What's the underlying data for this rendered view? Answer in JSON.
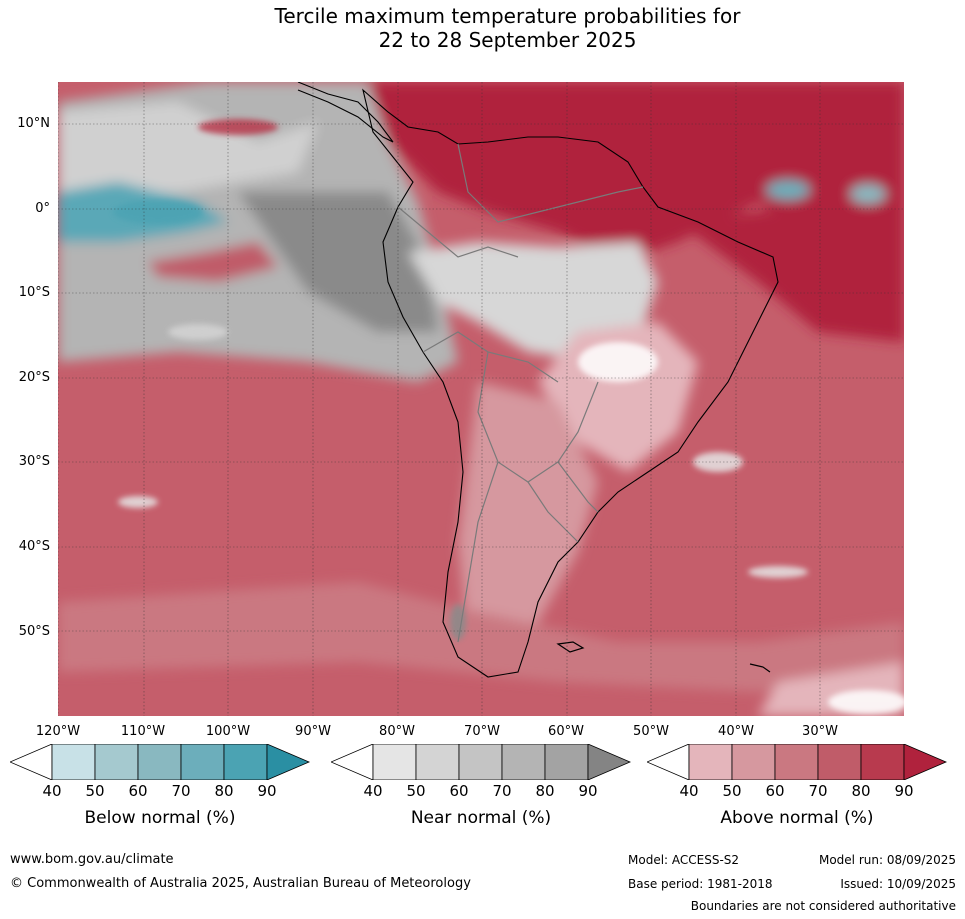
{
  "title": {
    "line1": "Tercile maximum temperature probabilities for",
    "line2": "22 to 28 September 2025"
  },
  "map": {
    "lat_labels": [
      "10°N",
      "0°",
      "10°S",
      "20°S",
      "30°S",
      "40°S",
      "50°S"
    ],
    "lon_labels": [
      "120°W",
      "110°W",
      "100°W",
      "90°W",
      "80°W",
      "70°W",
      "60°W",
      "50°W",
      "40°W",
      "30°W"
    ]
  },
  "colorbars": {
    "below": {
      "title": "Below normal (%)",
      "ticks": [
        "40",
        "50",
        "60",
        "70",
        "80",
        "90"
      ],
      "colors": [
        "#ffffff",
        "#c8e1e7",
        "#a5c9cf",
        "#89b8c0",
        "#6caebb",
        "#4ba3b3",
        "#2a8fa3"
      ]
    },
    "near": {
      "title": "Near normal (%)",
      "ticks": [
        "40",
        "50",
        "60",
        "70",
        "80",
        "90"
      ],
      "colors": [
        "#ffffff",
        "#e5e5e5",
        "#d4d4d4",
        "#c4c4c4",
        "#b4b4b4",
        "#a3a3a3",
        "#848484"
      ]
    },
    "above": {
      "title": "Above normal (%)",
      "ticks": [
        "40",
        "50",
        "60",
        "70",
        "80",
        "90"
      ],
      "colors": [
        "#ffffff",
        "#e4b5bb",
        "#d6989f",
        "#ca7881",
        "#c05c69",
        "#b83a4e",
        "#b0223d"
      ]
    }
  },
  "footer": {
    "website": "www.bom.gov.au/climate",
    "copyright": "© Commonwealth of Australia 2025, Australian Bureau of Meteorology",
    "model": "Model: ACCESS-S2",
    "base_period": "Base period: 1981-2018",
    "model_run": "Model run: 08/09/2025",
    "issued": "Issued: 10/09/2025",
    "disclaimer": "Boundaries are not considered authoritative"
  }
}
